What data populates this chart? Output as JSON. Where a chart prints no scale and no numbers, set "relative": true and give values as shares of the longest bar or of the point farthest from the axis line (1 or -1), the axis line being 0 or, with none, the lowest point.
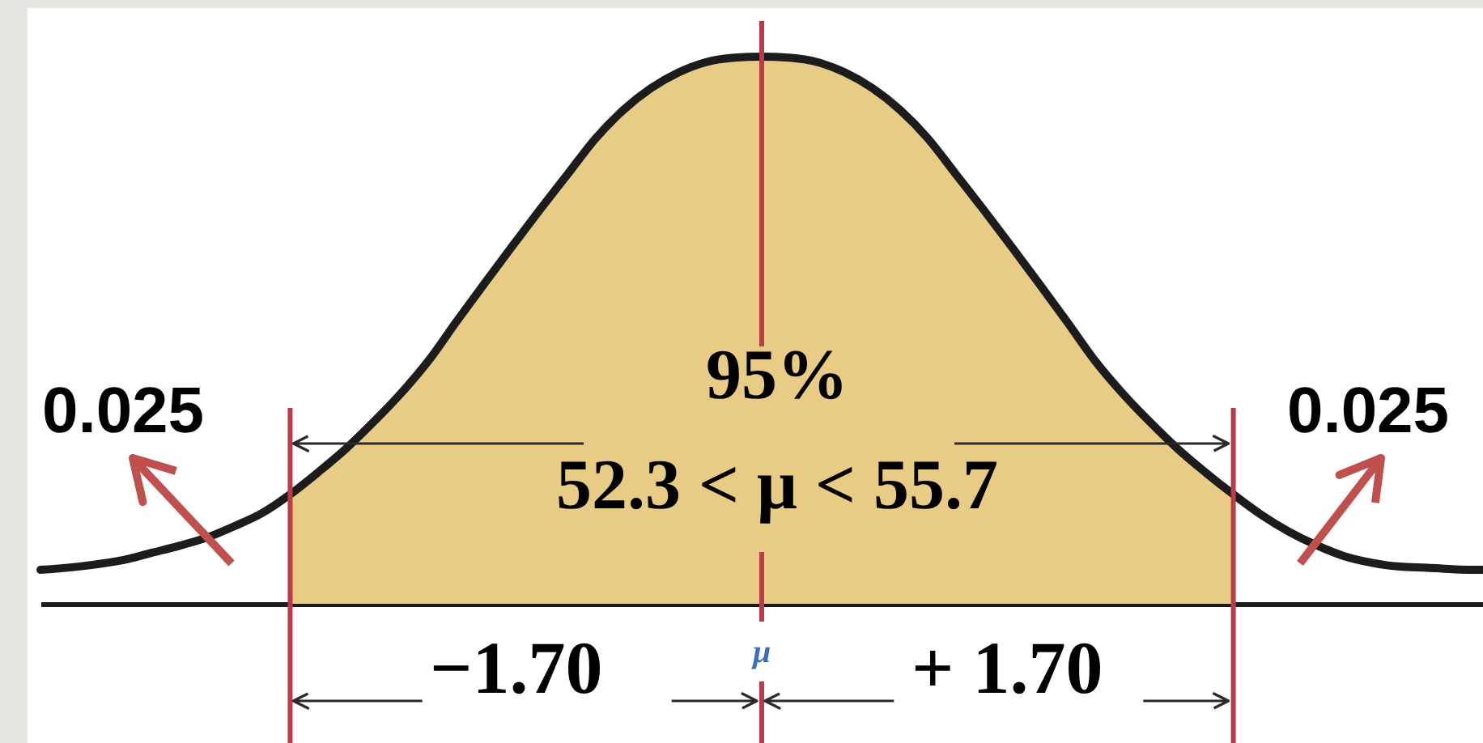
{
  "chart_data": {
    "type": "line",
    "relative": true,
    "categories": [
      null,
      null,
      null,
      null,
      null,
      null,
      null,
      null,
      null,
      null,
      null,
      null,
      null,
      null,
      null,
      null,
      null,
      null,
      null,
      null,
      null,
      null,
      null,
      null,
      null,
      null,
      null,
      null,
      null,
      null,
      null,
      null,
      null,
      null,
      null,
      null,
      null,
      null,
      null,
      null,
      null,
      null,
      null,
      null,
      null,
      null,
      null,
      null,
      null,
      null,
      null,
      null,
      null
    ],
    "series": [
      {
        "type": "area",
        "color": "#e8cc86",
        "values": [
          null,
          null,
          null,
          null,
          null,
          null,
          null,
          null,
          null,
          0.2,
          0.24,
          0.283,
          0.332,
          0.385,
          0.445,
          0.516,
          0.585,
          0.653,
          0.72,
          0.785,
          0.85,
          0.902,
          0.942,
          0.971,
          0.99,
          0.998,
          1,
          0.998,
          0.99,
          0.971,
          0.942,
          0.902,
          0.85,
          0.785,
          0.72,
          0.653,
          0.585,
          0.516,
          0.445,
          0.385,
          0.332,
          0.283,
          0.24,
          0.2,
          null,
          null,
          null,
          null,
          null,
          null,
          null,
          null,
          null
        ]
      },
      {
        "color": "#1c1c1c",
        "values": [
          0.062,
          0.066,
          0.072,
          0.08,
          0.093,
          0.106,
          0.121,
          0.142,
          0.166,
          0.2,
          0.24,
          0.283,
          0.332,
          0.385,
          0.445,
          0.516,
          0.585,
          0.653,
          0.72,
          0.785,
          0.85,
          0.902,
          0.942,
          0.971,
          0.99,
          0.998,
          1,
          0.998,
          0.99,
          0.971,
          0.942,
          0.902,
          0.85,
          0.785,
          0.72,
          0.653,
          0.585,
          0.516,
          0.445,
          0.385,
          0.332,
          0.283,
          0.24,
          0.2,
          0.163,
          0.132,
          0.107,
          0.087,
          0.075,
          0.068,
          0.066,
          0.063,
          0.062
        ]
      }
    ],
    "annotations": [
      "95%",
      "52.3 < μ < 55.7",
      "0.025",
      "0.025",
      "−1.70",
      "μ",
      "+ 1.70"
    ]
  }
}
